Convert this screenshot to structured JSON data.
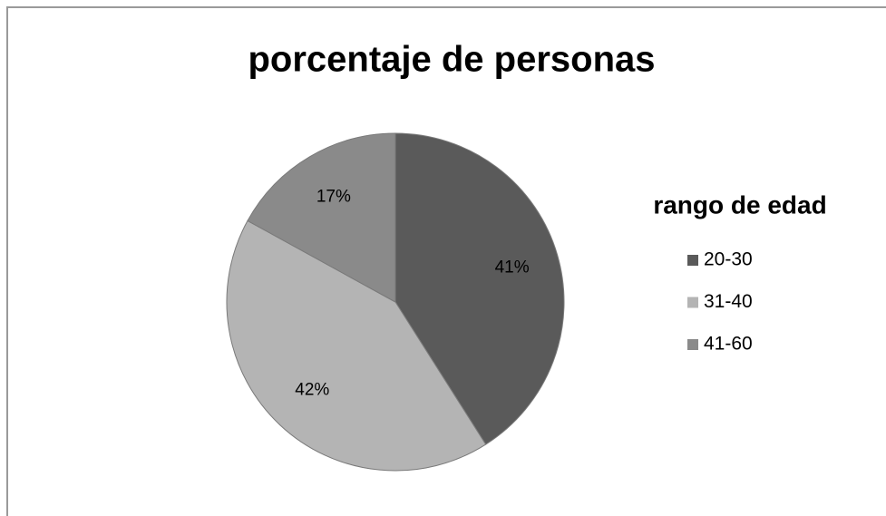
{
  "chart_data": {
    "type": "pie",
    "title": "porcentaje de personas",
    "legend_title": "rango de edad",
    "categories": [
      "20-30",
      "31-40",
      "41-60"
    ],
    "values": [
      41,
      42,
      17
    ],
    "value_labels": [
      "41%",
      "42%",
      "17%"
    ],
    "colors": [
      "#5a5a5a",
      "#b4b4b4",
      "#8a8a8a"
    ],
    "legend": "right"
  }
}
